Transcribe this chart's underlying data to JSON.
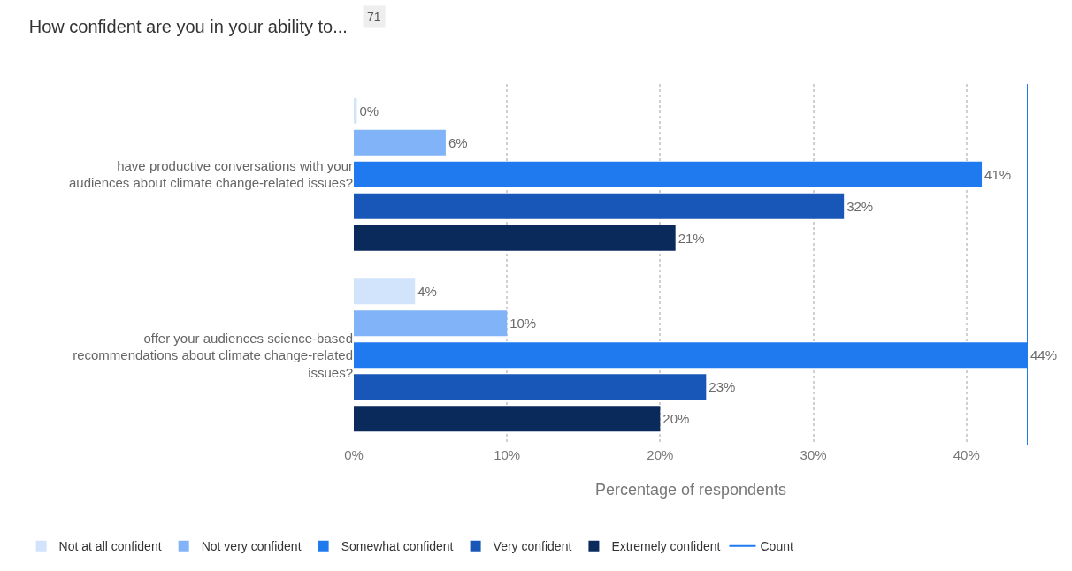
{
  "chart_data": {
    "type": "bar",
    "orientation": "horizontal",
    "title": "How confident are you in your ability to...",
    "annotations": [
      "71"
    ],
    "xlabel": "Percentage of respondents",
    "categories": [
      "have productive conversations with your audiences about climate change-related issues?",
      "offer your audiences science-based recommendations about climate change-related issues?"
    ],
    "series": [
      {
        "name": "Not at all confident",
        "color": "#d2e3fc",
        "values": [
          0.2,
          4
        ],
        "value_labels": [
          "0%",
          "4%"
        ]
      },
      {
        "name": "Not very confident",
        "color": "#80b3f7",
        "values": [
          6,
          10
        ],
        "value_labels": [
          "6%",
          "10%"
        ]
      },
      {
        "name": "Somewhat confident",
        "color": "#1f7aef",
        "values": [
          41,
          44
        ],
        "value_labels": [
          "41%",
          "44%"
        ]
      },
      {
        "name": "Very confident",
        "color": "#1857b8",
        "values": [
          32,
          23
        ],
        "value_labels": [
          "32%",
          "23%"
        ]
      },
      {
        "name": "Extremely confident",
        "color": "#0a2a5c",
        "values": [
          21,
          20
        ],
        "value_labels": [
          "21%",
          "20%"
        ]
      },
      {
        "name": "Count",
        "type": "line",
        "color": "#1f7aef",
        "values": [
          null,
          null
        ]
      }
    ],
    "xlim": [
      0,
      44
    ],
    "xticks": [
      {
        "value": 0,
        "label": "0%"
      },
      {
        "value": 10,
        "label": "10%"
      },
      {
        "value": 20,
        "label": "20%"
      },
      {
        "value": 30,
        "label": "30%"
      },
      {
        "value": 40,
        "label": "40%"
      }
    ],
    "ref_lines": [
      {
        "axis": "x",
        "value": 44,
        "color": "#1f7aef"
      }
    ],
    "grid": "x",
    "legend": "bottom"
  }
}
